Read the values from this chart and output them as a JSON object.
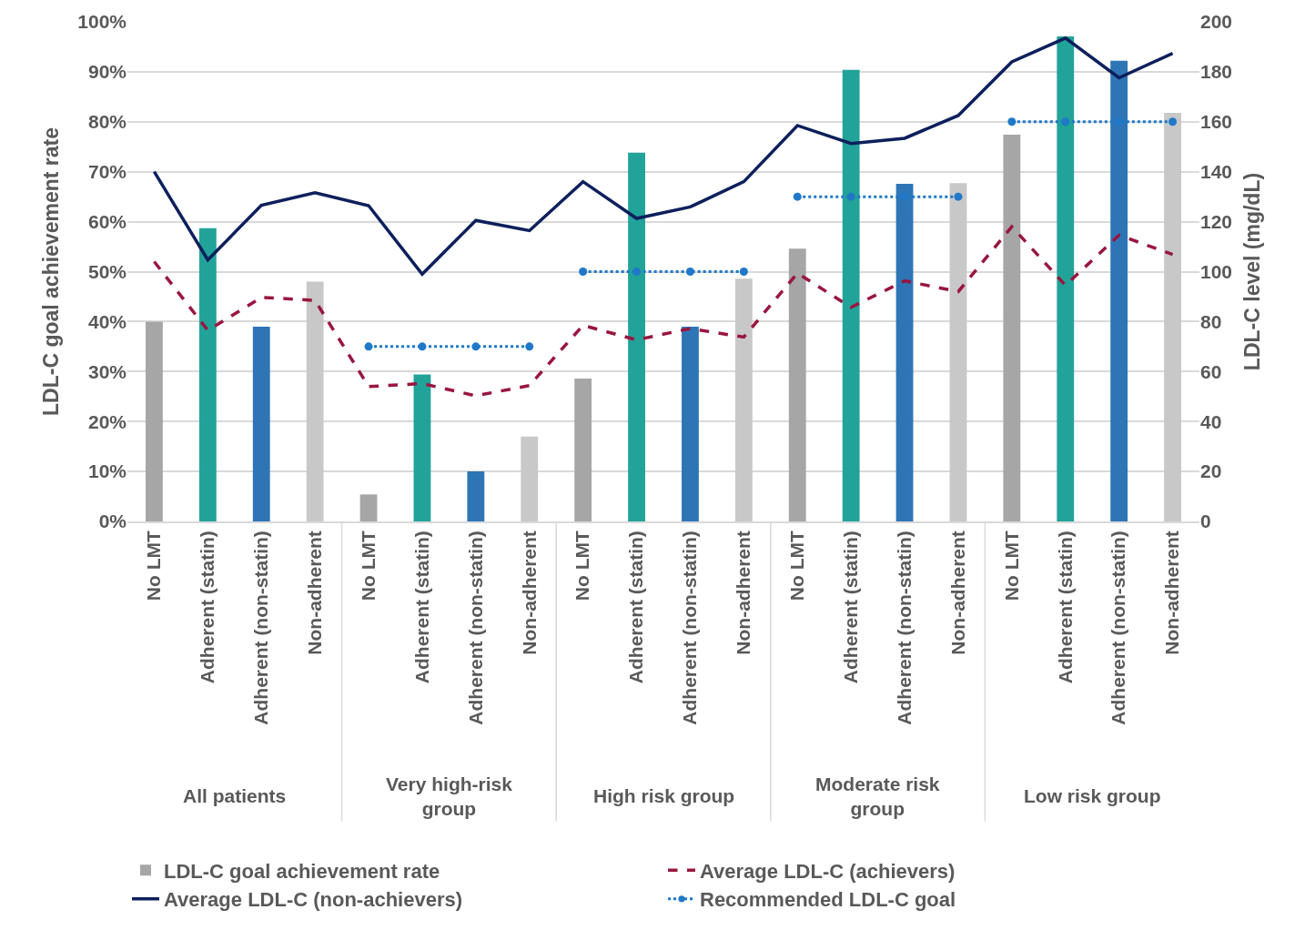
{
  "chart_data": {
    "type": "bar",
    "ylabel": "LDL-C goal achievement rate",
    "y2label": "LDL-C level (mg/dL)",
    "categories": [
      "No LMT",
      "Adherent (statin)",
      "Adherent (non-statin)",
      "Non-adherent",
      "No LMT",
      "Adherent (statin)",
      "Adherent (non-statin)",
      "Non-adherent",
      "No LMT",
      "Adherent (statin)",
      "Adherent (non-statin)",
      "Non-adherent",
      "No LMT",
      "Adherent (statin)",
      "Adherent (non-statin)",
      "Non-adherent",
      "No LMT",
      "Adherent (statin)",
      "Adherent (non-statin)",
      "Non-adherent"
    ],
    "annotations": [
      "All patients",
      "Very high-risk\ngroup",
      "High risk group",
      "Moderate risk\ngroup",
      "Low risk group"
    ],
    "series": [
      {
        "name": "LDL-C goal achievement rate",
        "color": "#a6a6a6",
        "colors": [
          "#a6a6a6",
          "#22a39a",
          "#2e75b6",
          "#c8c8c8",
          "#a6a6a6",
          "#22a39a",
          "#2e75b6",
          "#c8c8c8",
          "#a6a6a6",
          "#22a39a",
          "#2e75b6",
          "#c8c8c8",
          "#a6a6a6",
          "#22a39a",
          "#2e75b6",
          "#c8c8c8",
          "#a6a6a6",
          "#22a39a",
          "#2e75b6",
          "#c8c8c8"
        ],
        "values": [
          40,
          58.7,
          39,
          48,
          5.4,
          29.4,
          10,
          17,
          28.6,
          73.8,
          39,
          48.6,
          54.6,
          90.4,
          67.6,
          67.7,
          77.4,
          97.1,
          92.2,
          81.8
        ]
      },
      {
        "name": "Average LDL-C (achievers)",
        "type": "line",
        "axis": "y2",
        "color": "#99163f",
        "line_style": "dashed",
        "marker": "none",
        "values": [
          104,
          76.5,
          89.7,
          88.5,
          54,
          55.2,
          50.3,
          54.4,
          78.5,
          72.7,
          77.2,
          73.8,
          99.4,
          85.7,
          96.3,
          92,
          118,
          94.5,
          114.6,
          106.9
        ]
      },
      {
        "name": "Average LDL-C (non-achievers)",
        "type": "line",
        "axis": "y2",
        "color": "#0d1f5c",
        "line_style": "solid",
        "marker": "none",
        "values": [
          140,
          104.7,
          126.6,
          131.6,
          126.4,
          99,
          120.5,
          116.4,
          136,
          121.3,
          125.9,
          136,
          158.5,
          151.3,
          153.4,
          162.5,
          184,
          193.5,
          177.6,
          187.4
        ]
      },
      {
        "name": "Recommended LDL-C goal",
        "type": "line",
        "axis": "y2",
        "color": "#1f78c8",
        "line_style": "dotted",
        "marker": "circle",
        "values": [
          null,
          null,
          null,
          null,
          70,
          70,
          70,
          70,
          100,
          100,
          100,
          100,
          130,
          130,
          130,
          130,
          160,
          160,
          160,
          160
        ]
      }
    ],
    "ylim": [
      0,
      100
    ],
    "yticks": [
      {
        "value": 0,
        "label": "0%"
      },
      {
        "value": 10,
        "label": "10%"
      },
      {
        "value": 20,
        "label": "20%"
      },
      {
        "value": 30,
        "label": "30%"
      },
      {
        "value": 40,
        "label": "40%"
      },
      {
        "value": 50,
        "label": "50%"
      },
      {
        "value": 60,
        "label": "60%"
      },
      {
        "value": 70,
        "label": "70%"
      },
      {
        "value": 80,
        "label": "80%"
      },
      {
        "value": 90,
        "label": "90%"
      },
      {
        "value": 100,
        "label": "100%"
      }
    ],
    "y2lim": [
      0,
      200
    ],
    "y2ticks": [
      0,
      20,
      40,
      60,
      80,
      100,
      120,
      140,
      160,
      180,
      200
    ],
    "grid": "y",
    "legend": "bottom"
  }
}
